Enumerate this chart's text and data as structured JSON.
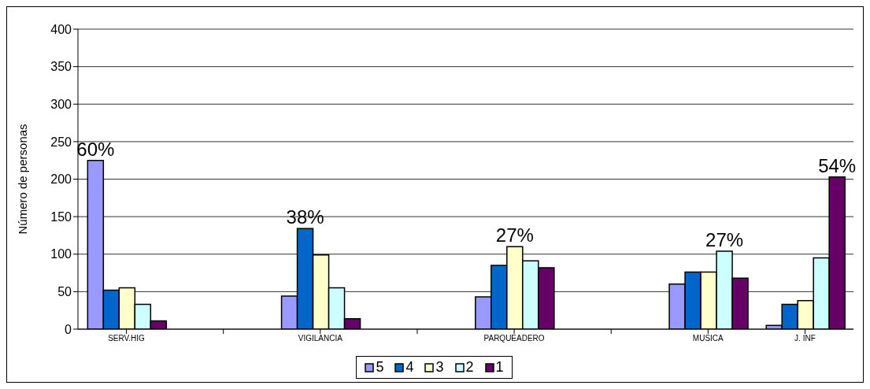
{
  "chart_data": {
    "type": "bar",
    "ylabel": "Número de personas",
    "categories": [
      "SERV.HIG",
      null,
      "VIGILANCIA",
      null,
      "PARQUEADERO",
      null,
      "MUSICA",
      "J. INF"
    ],
    "series": [
      {
        "name": "5",
        "color": "#9999ff",
        "values": [
          225,
          null,
          44,
          null,
          43,
          null,
          60,
          5
        ]
      },
      {
        "name": "4",
        "color": "#0066cc",
        "values": [
          52,
          null,
          134,
          null,
          85,
          null,
          76,
          33
        ]
      },
      {
        "name": "3",
        "color": "#ffffcc",
        "values": [
          55,
          null,
          99,
          null,
          110,
          null,
          76,
          38
        ]
      },
      {
        "name": "2",
        "color": "#ccffff",
        "values": [
          33,
          null,
          55,
          null,
          91,
          null,
          104,
          95
        ]
      },
      {
        "name": "1",
        "color": "#660066",
        "values": [
          11,
          null,
          14,
          null,
          82,
          null,
          68,
          203
        ]
      }
    ],
    "ylim": [
      0,
      400
    ],
    "yticks": [
      0,
      50,
      100,
      150,
      200,
      250,
      300,
      350,
      400
    ],
    "grid": "y",
    "legend": "bottom",
    "annotations": [
      "60%",
      "38%",
      "27%",
      "27%",
      "54%"
    ]
  }
}
